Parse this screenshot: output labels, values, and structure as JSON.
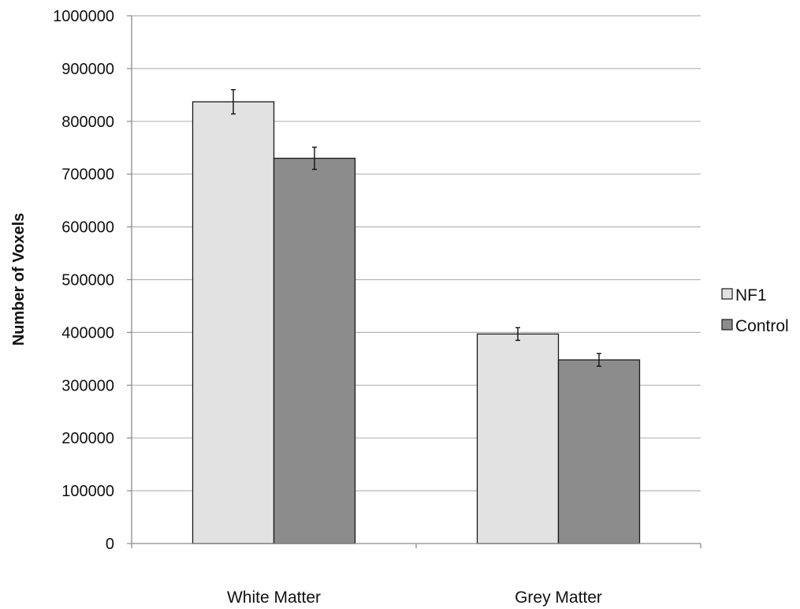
{
  "chart_data": {
    "type": "bar",
    "categories": [
      "White Matter",
      "Grey Matter"
    ],
    "series": [
      {
        "name": "NF1",
        "values": [
          837000,
          397000
        ],
        "errors": [
          23000,
          12000
        ],
        "color": "#e2e2e2"
      },
      {
        "name": "Control",
        "values": [
          730000,
          348000
        ],
        "errors": [
          21000,
          12000
        ],
        "color": "#8c8c8c"
      }
    ],
    "xlabel": "",
    "ylabel": "Number of Voxels",
    "ylim": [
      0,
      1000000
    ],
    "yticks": [
      0,
      100000,
      200000,
      300000,
      400000,
      500000,
      600000,
      700000,
      800000,
      900000,
      1000000
    ],
    "ytick_labels": [
      "0",
      "100000",
      "200000",
      "300000",
      "400000",
      "500000",
      "600000",
      "700000",
      "800000",
      "900000",
      "1000000"
    ],
    "grid": true,
    "legend_position": "right"
  }
}
